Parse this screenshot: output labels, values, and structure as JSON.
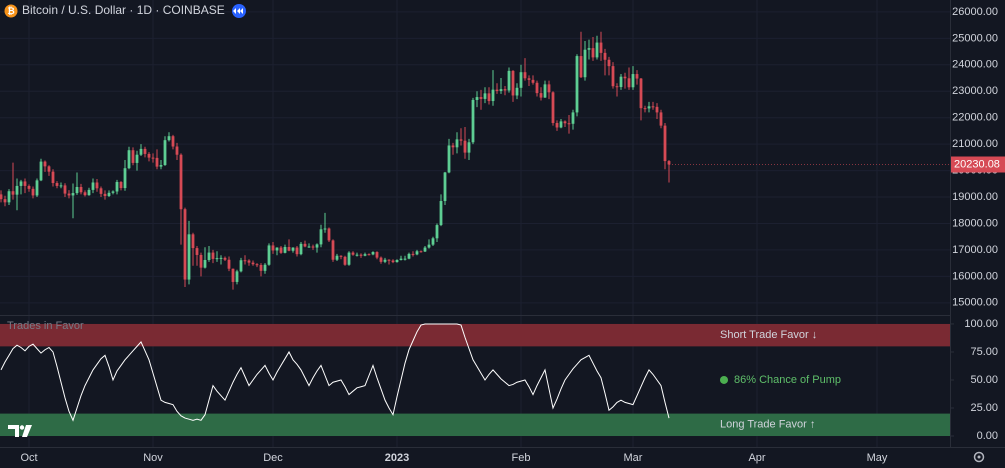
{
  "chart_data": [
    {
      "type": "candlestick",
      "title": "Bitcoin / U.S. Dollar · 1D · COINBASE",
      "up_color": "#5ece93",
      "down_color": "#d64a55",
      "grid": true,
      "ylim": [
        14540,
        26450
      ],
      "yticks": [
        {
          "value": 15000,
          "label": "15000.00"
        },
        {
          "value": 16000,
          "label": "16000.00"
        },
        {
          "value": 17000,
          "label": "17000.00"
        },
        {
          "value": 18000,
          "label": "18000.00"
        },
        {
          "value": 19000,
          "label": "19000.00"
        },
        {
          "value": 20000,
          "label": "20000.00"
        },
        {
          "value": 21000,
          "label": "21000.00"
        },
        {
          "value": 22000,
          "label": "22000.00"
        },
        {
          "value": 23000,
          "label": "23000.00"
        },
        {
          "value": 24000,
          "label": "24000.00"
        },
        {
          "value": 25000,
          "label": "25000.00"
        },
        {
          "value": 26000,
          "label": "26000.00"
        }
      ],
      "xlim": [
        -0.25,
        237.25
      ],
      "xticks": [
        {
          "value": 7,
          "label": "Oct"
        },
        {
          "value": 38,
          "label": "Nov"
        },
        {
          "value": 68,
          "label": "Dec"
        },
        {
          "value": 99,
          "label": "2023"
        },
        {
          "value": 130,
          "label": "Feb"
        },
        {
          "value": 158,
          "label": "Mar"
        },
        {
          "value": 189,
          "label": "Apr"
        },
        {
          "value": 219,
          "label": "May"
        }
      ],
      "candles": [
        [
          19100,
          19250,
          18800,
          18920
        ],
        [
          18920,
          19050,
          18650,
          18800
        ],
        [
          18800,
          19300,
          18700,
          19220
        ],
        [
          19220,
          20300,
          18900,
          19090
        ],
        [
          19090,
          19700,
          18500,
          19420
        ],
        [
          19420,
          19650,
          19100,
          19590
        ],
        [
          19590,
          19700,
          19150,
          19420
        ],
        [
          19420,
          19480,
          19200,
          19310
        ],
        [
          19310,
          19400,
          18950,
          19060
        ],
        [
          19060,
          19700,
          19000,
          19630
        ],
        [
          19630,
          20450,
          19600,
          20340
        ],
        [
          20340,
          20380,
          19950,
          20160
        ],
        [
          20160,
          20200,
          19800,
          19960
        ],
        [
          19960,
          20050,
          19400,
          19530
        ],
        [
          19530,
          19600,
          19330,
          19420
        ],
        [
          19420,
          19550,
          19330,
          19440
        ],
        [
          19440,
          19520,
          19000,
          19130
        ],
        [
          19130,
          19260,
          18950,
          19060
        ],
        [
          19060,
          19510,
          18200,
          19150
        ],
        [
          19150,
          19930,
          19080,
          19380
        ],
        [
          19380,
          19500,
          19100,
          19180
        ],
        [
          19180,
          19250,
          19020,
          19070
        ],
        [
          19070,
          19350,
          19050,
          19270
        ],
        [
          19270,
          19700,
          19150,
          19550
        ],
        [
          19550,
          19680,
          19200,
          19330
        ],
        [
          19330,
          19400,
          19000,
          19120
        ],
        [
          19120,
          19250,
          18900,
          19040
        ],
        [
          19040,
          19250,
          19000,
          19160
        ],
        [
          19160,
          19250,
          19100,
          19210
        ],
        [
          19210,
          19650,
          19100,
          19570
        ],
        [
          19570,
          19600,
          19250,
          19340
        ],
        [
          19340,
          20400,
          19240,
          20090
        ],
        [
          20090,
          20900,
          20050,
          20770
        ],
        [
          20770,
          20880,
          20200,
          20290
        ],
        [
          20290,
          20750,
          20000,
          20600
        ],
        [
          20600,
          21000,
          20550,
          20820
        ],
        [
          20820,
          20900,
          20500,
          20630
        ],
        [
          20630,
          20700,
          20350,
          20490
        ],
        [
          20490,
          20650,
          20300,
          20480
        ],
        [
          20480,
          20800,
          20050,
          20150
        ],
        [
          20150,
          20400,
          20050,
          20210
        ],
        [
          20210,
          21300,
          20180,
          21150
        ],
        [
          21150,
          21450,
          21100,
          21300
        ],
        [
          21300,
          21350,
          20800,
          20910
        ],
        [
          20910,
          21050,
          20400,
          20600
        ],
        [
          20600,
          20650,
          17200,
          18540
        ],
        [
          18540,
          18600,
          15600,
          15880
        ],
        [
          15880,
          18100,
          15700,
          17590
        ],
        [
          17590,
          17650,
          16400,
          17070
        ],
        [
          17070,
          17150,
          16400,
          16810
        ],
        [
          16810,
          16900,
          16000,
          16330
        ],
        [
          16330,
          17100,
          16300,
          16620
        ],
        [
          16620,
          17150,
          16550,
          16900
        ],
        [
          16900,
          17000,
          16500,
          16660
        ],
        [
          16660,
          16950,
          16550,
          16690
        ],
        [
          16690,
          16800,
          16450,
          16700
        ],
        [
          16700,
          16750,
          16580,
          16630
        ],
        [
          16630,
          16750,
          16200,
          16290
        ],
        [
          16290,
          16300,
          15500,
          15790
        ],
        [
          15790,
          16250,
          15700,
          16190
        ],
        [
          16190,
          16700,
          16150,
          16610
        ],
        [
          16610,
          16800,
          16450,
          16600
        ],
        [
          16600,
          16650,
          16400,
          16520
        ],
        [
          16520,
          16600,
          16400,
          16460
        ],
        [
          16460,
          16500,
          16350,
          16430
        ],
        [
          16430,
          16500,
          16000,
          16210
        ],
        [
          16210,
          16500,
          16100,
          16440
        ],
        [
          16440,
          17250,
          16400,
          17170
        ],
        [
          17170,
          17300,
          16850,
          16980
        ],
        [
          16980,
          17100,
          16800,
          17090
        ],
        [
          17090,
          17150,
          16850,
          16890
        ],
        [
          16890,
          17200,
          16870,
          17110
        ],
        [
          17110,
          17400,
          16950,
          16970
        ],
        [
          16970,
          17100,
          16900,
          17090
        ],
        [
          17090,
          17150,
          16750,
          16840
        ],
        [
          16840,
          17300,
          16800,
          17230
        ],
        [
          17230,
          17350,
          17100,
          17130
        ],
        [
          17130,
          17250,
          17080,
          17130
        ],
        [
          17130,
          17200,
          17000,
          17090
        ],
        [
          17090,
          17250,
          16900,
          17210
        ],
        [
          17210,
          17950,
          17100,
          17780
        ],
        [
          17780,
          18400,
          17650,
          17810
        ],
        [
          17810,
          17850,
          17300,
          17360
        ],
        [
          17360,
          17400,
          16550,
          16630
        ],
        [
          16630,
          16850,
          16580,
          16780
        ],
        [
          16780,
          16800,
          16650,
          16740
        ],
        [
          16740,
          16780,
          16400,
          16440
        ],
        [
          16440,
          16950,
          16400,
          16900
        ],
        [
          16900,
          16950,
          16780,
          16820
        ],
        [
          16820,
          16900,
          16750,
          16820
        ],
        [
          16820,
          16870,
          16700,
          16780
        ],
        [
          16780,
          16900,
          16760,
          16840
        ],
        [
          16840,
          16870,
          16790,
          16830
        ],
        [
          16830,
          16950,
          16800,
          16920
        ],
        [
          16920,
          16950,
          16650,
          16710
        ],
        [
          16710,
          16750,
          16480,
          16550
        ],
        [
          16550,
          16700,
          16500,
          16630
        ],
        [
          16630,
          16650,
          16450,
          16600
        ],
        [
          16600,
          16650,
          16500,
          16540
        ],
        [
          16540,
          16650,
          16520,
          16620
        ],
        [
          16620,
          16780,
          16600,
          16670
        ],
        [
          16670,
          16780,
          16600,
          16670
        ],
        [
          16670,
          16900,
          16650,
          16850
        ],
        [
          16850,
          16950,
          16750,
          16830
        ],
        [
          16830,
          17000,
          16800,
          16950
        ],
        [
          16950,
          16980,
          16900,
          16940
        ],
        [
          16940,
          17150,
          16920,
          17090
        ],
        [
          17090,
          17400,
          17050,
          17200
        ],
        [
          17200,
          17500,
          17150,
          17440
        ],
        [
          17440,
          18000,
          17300,
          17940
        ],
        [
          17940,
          19100,
          17900,
          18850
        ],
        [
          18850,
          19950,
          18700,
          19930
        ],
        [
          19930,
          21200,
          19900,
          20950
        ],
        [
          20950,
          21050,
          20600,
          20880
        ],
        [
          20880,
          21450,
          20650,
          21180
        ],
        [
          21180,
          21600,
          20950,
          21130
        ],
        [
          21130,
          21650,
          20450,
          20680
        ],
        [
          20680,
          21200,
          20400,
          21070
        ],
        [
          21070,
          22750,
          21000,
          22670
        ],
        [
          22670,
          23000,
          22400,
          22780
        ],
        [
          22780,
          23050,
          22300,
          22710
        ],
        [
          22710,
          23150,
          22550,
          22920
        ],
        [
          22920,
          23150,
          22500,
          22630
        ],
        [
          22630,
          23800,
          22450,
          23060
        ],
        [
          23060,
          23300,
          22900,
          23010
        ],
        [
          23010,
          23500,
          22900,
          23080
        ],
        [
          23080,
          23200,
          22850,
          23030
        ],
        [
          23030,
          23900,
          22950,
          23770
        ],
        [
          23770,
          23800,
          22600,
          22840
        ],
        [
          22840,
          23300,
          22700,
          23130
        ],
        [
          23130,
          24000,
          22800,
          23720
        ],
        [
          23720,
          24250,
          23400,
          23490
        ],
        [
          23490,
          23600,
          23200,
          23430
        ],
        [
          23430,
          23600,
          23250,
          23320
        ],
        [
          23320,
          23400,
          22800,
          22930
        ],
        [
          22930,
          23150,
          22650,
          22760
        ],
        [
          22760,
          23400,
          22750,
          23260
        ],
        [
          23260,
          23400,
          22700,
          22960
        ],
        [
          22960,
          23000,
          21700,
          21800
        ],
        [
          21800,
          21900,
          21500,
          21630
        ],
        [
          21630,
          21950,
          21600,
          21860
        ],
        [
          21860,
          21900,
          21650,
          21790
        ],
        [
          21790,
          22100,
          21400,
          21770
        ],
        [
          21770,
          22300,
          21550,
          22200
        ],
        [
          22200,
          24400,
          22050,
          24330
        ],
        [
          24330,
          25250,
          23500,
          23530
        ],
        [
          23530,
          24900,
          23400,
          24570
        ],
        [
          24570,
          24950,
          24200,
          24630
        ],
        [
          24630,
          25050,
          24150,
          24280
        ],
        [
          24280,
          25100,
          24200,
          24840
        ],
        [
          24840,
          25250,
          24150,
          24450
        ],
        [
          24450,
          24600,
          23600,
          24190
        ],
        [
          24190,
          24300,
          23600,
          23950
        ],
        [
          23950,
          24100,
          23100,
          23190
        ],
        [
          23190,
          23300,
          22800,
          23160
        ],
        [
          23160,
          23650,
          23050,
          23550
        ],
        [
          23550,
          23700,
          23100,
          23490
        ],
        [
          23490,
          23900,
          23050,
          23150
        ],
        [
          23150,
          23950,
          23050,
          23650
        ],
        [
          23650,
          23800,
          23250,
          23480
        ],
        [
          23480,
          23500,
          21900,
          22360
        ],
        [
          22360,
          22450,
          22200,
          22350
        ],
        [
          22350,
          22600,
          22200,
          22430
        ],
        [
          22430,
          22600,
          22300,
          22410
        ],
        [
          22410,
          22550,
          21950,
          22200
        ],
        [
          22200,
          22300,
          21600,
          21700
        ],
        [
          21700,
          21800,
          20050,
          20360
        ],
        [
          20360,
          20400,
          19550,
          20230.08
        ]
      ]
    },
    {
      "type": "line",
      "title": "Trades in Favor",
      "color": "#ffffff",
      "ylim": [
        -10.7,
        107.1
      ],
      "yticks": [
        {
          "value": 0,
          "label": "0.00"
        },
        {
          "value": 25,
          "label": "25.00"
        },
        {
          "value": 50,
          "label": "50.00"
        },
        {
          "value": 75,
          "label": "75.00"
        },
        {
          "value": 100,
          "label": "100.00"
        }
      ],
      "bands": [
        {
          "name": "Short Trade Favor ↓",
          "range": [
            80,
            100
          ],
          "color": "#7a2a33"
        },
        {
          "name": "Long Trade Favor ↑",
          "range": [
            0,
            20
          ],
          "color": "#2e6b46"
        }
      ],
      "annotation": "86% Chance of Pump",
      "values": [
        59,
        66,
        72,
        78,
        81,
        79,
        76,
        80,
        82,
        78,
        74,
        77,
        79,
        75,
        62,
        48,
        34,
        22,
        14,
        25,
        36,
        45,
        52,
        59,
        64,
        69,
        72,
        62,
        50,
        58,
        63,
        68,
        72,
        76,
        80,
        84,
        76,
        68,
        56,
        44,
        32,
        30,
        29,
        28,
        22,
        18,
        16,
        15,
        14,
        15,
        14,
        19,
        32,
        45,
        40,
        36,
        32,
        40,
        48,
        55,
        61,
        53,
        45,
        50,
        55,
        59,
        63,
        56,
        50,
        57,
        63,
        69,
        75,
        68,
        64,
        59,
        52,
        45,
        52,
        58,
        63,
        54,
        45,
        48,
        49,
        50,
        44,
        37,
        40,
        43,
        44,
        45,
        54,
        63,
        52,
        42,
        32,
        25,
        19,
        35,
        50,
        65,
        77,
        85,
        93,
        99,
        100,
        100,
        100,
        100,
        100,
        100,
        100,
        100,
        100,
        99,
        88,
        78,
        68,
        62,
        56,
        50,
        55,
        59,
        55,
        51,
        48,
        45,
        46,
        48,
        49,
        50,
        44,
        37,
        45,
        52,
        59,
        42,
        25,
        33,
        42,
        50,
        55,
        60,
        64,
        68,
        70,
        72,
        65,
        58,
        52,
        38,
        23,
        26,
        30,
        32,
        30,
        29,
        28,
        36,
        44,
        52,
        59,
        55,
        50,
        45,
        30,
        16
      ]
    }
  ]
}
